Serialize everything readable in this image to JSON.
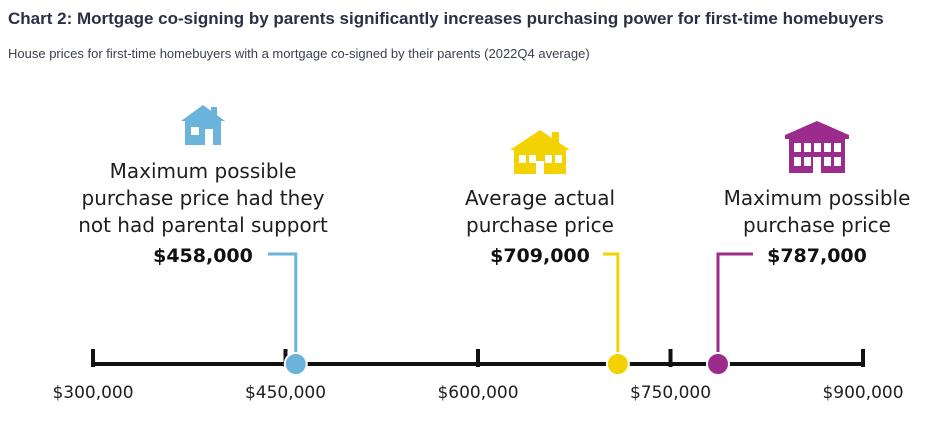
{
  "header": {
    "title": "Chart 2: Mortgage co-signing by parents significantly increases purchasing power for first-time homebuyers",
    "subtitle": "House prices for first-time homebuyers with a mortgage co-signed by their parents (2022Q4 average)"
  },
  "chart_data": {
    "type": "scatter",
    "title": "Chart 2: Mortgage co-signing by parents significantly increases purchasing power for first-time homebuyers",
    "subtitle": "House prices for first-time homebuyers with a mortgage co-signed by their parents (2022Q4 average)",
    "xlim": [
      300000,
      900000
    ],
    "ticks": [
      300000,
      450000,
      600000,
      750000,
      900000
    ],
    "tick_labels": [
      "$300,000",
      "$450,000",
      "$600,000",
      "$750,000",
      "$900,000"
    ],
    "grid": false,
    "points": [
      {
        "value": 458000,
        "value_label": "$458,000",
        "label_lines": [
          "Maximum possible",
          "purchase price had they",
          "not had parental support"
        ],
        "color": "#6ab4dc",
        "icon": "small-house-icon"
      },
      {
        "value": 709000,
        "value_label": "$709,000",
        "label_lines": [
          "Average actual",
          "purchase price"
        ],
        "color": "#f2d200",
        "icon": "medium-house-icon"
      },
      {
        "value": 787000,
        "value_label": "$787,000",
        "label_lines": [
          "Maximum possible",
          "purchase price"
        ],
        "color": "#9c2c8c",
        "icon": "large-house-icon"
      }
    ]
  }
}
